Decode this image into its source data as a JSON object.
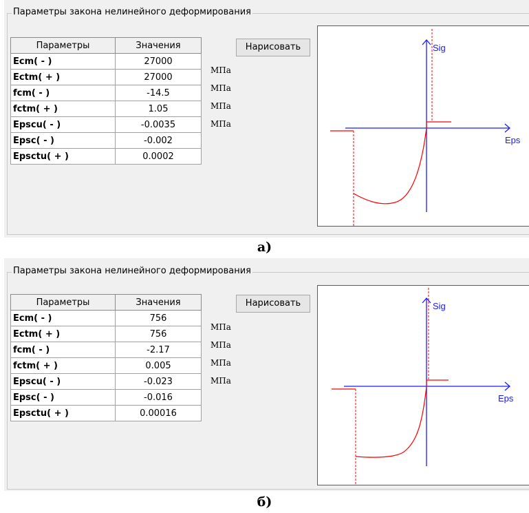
{
  "panels": [
    {
      "group_title": "Параметры закона нелинейного деформирования",
      "draw_button": "Нарисовать",
      "table": {
        "headers": [
          "Параметры",
          "Значения"
        ],
        "rows": [
          {
            "name": "Ecm( - )",
            "value": "27000"
          },
          {
            "name": "Ectm( + )",
            "value": "27000"
          },
          {
            "name": "fcm( - )",
            "value": "-14.5"
          },
          {
            "name": "fctm( + )",
            "value": "1.05"
          },
          {
            "name": "Epscu( - )",
            "value": "-0.0035"
          },
          {
            "name": "Epsc( - )",
            "value": "-0.002"
          },
          {
            "name": "Epsctu( + )",
            "value": "0.0002"
          }
        ]
      },
      "units": [
        "МПа",
        "МПа",
        "МПа",
        "МПа"
      ],
      "plot": {
        "y_label": "Sig",
        "x_label": "Eps"
      },
      "caption": "а)"
    },
    {
      "group_title": "Параметры закона нелинейного деформирования",
      "draw_button": "Нарисовать",
      "table": {
        "headers": [
          "Параметры",
          "Значения"
        ],
        "rows": [
          {
            "name": "Ecm( - )",
            "value": "756"
          },
          {
            "name": "Ectm( + )",
            "value": "756"
          },
          {
            "name": "fcm( - )",
            "value": "-2.17"
          },
          {
            "name": "fctm( + )",
            "value": "0.005"
          },
          {
            "name": "Epscu( - )",
            "value": "-0.023"
          },
          {
            "name": "Epsc( - )",
            "value": "-0.016"
          },
          {
            "name": "Epsctu( + )",
            "value": "0.00016"
          }
        ]
      },
      "units": [
        "МПа",
        "МПа",
        "МПа",
        "МПа"
      ],
      "plot": {
        "y_label": "Sig",
        "x_label": "Eps"
      },
      "caption": "б)"
    }
  ],
  "colors": {
    "axis": "#1a1aff",
    "curve": "#ff0000",
    "panel_bg": "#f0f0f0"
  }
}
